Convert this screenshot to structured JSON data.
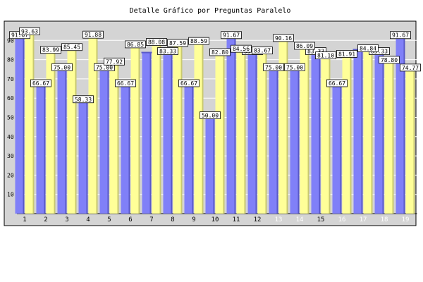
{
  "chart_data": {
    "type": "bar",
    "title": "Detalle Gráfico por Preguntas Paralelo",
    "categories": [
      "1",
      "2",
      "3",
      "4",
      "5",
      "6",
      "7",
      "8",
      "9",
      "10",
      "11",
      "12",
      "13",
      "14",
      "15",
      "16",
      "17",
      "18",
      "19"
    ],
    "series": [
      {
        "values": [
          91.67,
          66.67,
          75.0,
          58.33,
          75.0,
          66.67,
          83.33,
          83.33,
          66.67,
          50.0,
          91.67,
          83.33,
          75.0,
          75.0,
          83.33,
          66.67,
          84.84,
          83.33,
          91.67
        ]
      },
      {
        "values": [
          93.63,
          83.99,
          85.45,
          91.88,
          77.92,
          86.85,
          88.08,
          87.59,
          88.59,
          82.8,
          84.56,
          83.67,
          90.16,
          86.09,
          81.1,
          81.91,
          84.84,
          78.8,
          74.77
        ]
      }
    ],
    "data_labels": [
      [
        "91.67",
        "66.67",
        "75.00",
        "58.33",
        "75.00",
        "66.67",
        "",
        "83.33",
        "66.67",
        "50.00",
        "91.67",
        "83.33",
        "75.00",
        "75.00",
        "83.33",
        "66.67",
        "",
        "83.33",
        "91.67"
      ],
      [
        "93.63",
        "83.99",
        "85.45",
        "91.88",
        "77.92",
        "86.85",
        "88.08",
        "87.59",
        "88.59",
        "82.80",
        "84.56",
        "83.67",
        "90.16",
        "86.09",
        "81.10",
        "81.91",
        "84.84",
        "78.80",
        "74.77"
      ]
    ],
    "ylim": [
      0,
      100
    ],
    "yticks": [
      10,
      20,
      30,
      40,
      50,
      60,
      70,
      80,
      90
    ],
    "grid": true,
    "colors": {
      "series1": "#8080f8",
      "series1_shade": "#5858c8",
      "series2": "#ffff98",
      "series2_shade": "#c8c870",
      "plot_bg": "#d4d4d4",
      "grid": "#ffffff",
      "xtick_light": "#ffffff",
      "xtick_dark": "#000000"
    }
  }
}
